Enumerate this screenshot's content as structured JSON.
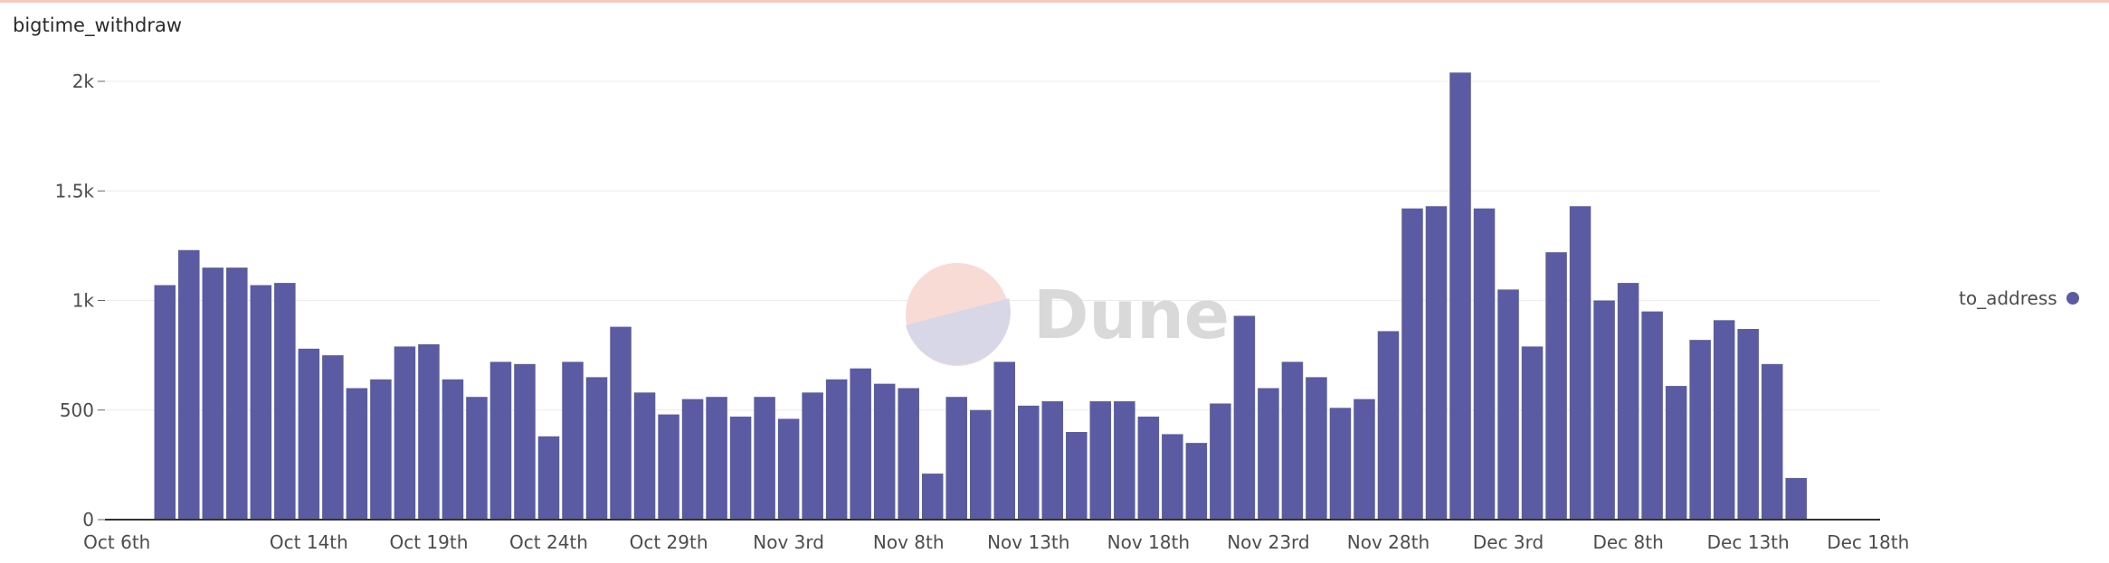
{
  "chart_data": {
    "type": "bar",
    "title": "bigtime_withdraw",
    "xlabel": "",
    "ylabel": "",
    "ylim": [
      0,
      2000
    ],
    "yticks": [
      0,
      500,
      1000,
      1500,
      2000
    ],
    "ytick_labels": [
      "0",
      "500",
      "1k",
      "1.5k",
      "2k"
    ],
    "grid": true,
    "legend_position": "right",
    "color": "#5b5ba3",
    "xtick_labels": [
      "Oct 6th",
      "Oct 14th",
      "Oct 19th",
      "Oct 24th",
      "Oct 29th",
      "Nov 3rd",
      "Nov 8th",
      "Nov 13th",
      "Nov 18th",
      "Nov 23rd",
      "Nov 28th",
      "Dec 3rd",
      "Dec 8th",
      "Dec 13th",
      "Dec 18th"
    ],
    "categories": [
      "Oct 6th",
      "Oct 7th",
      "Oct 8th",
      "Oct 9th",
      "Oct 10th",
      "Oct 11th",
      "Oct 12th",
      "Oct 13th",
      "Oct 14th",
      "Oct 15th",
      "Oct 16th",
      "Oct 17th",
      "Oct 18th",
      "Oct 19th",
      "Oct 20th",
      "Oct 21st",
      "Oct 22nd",
      "Oct 23rd",
      "Oct 24th",
      "Oct 25th",
      "Oct 26th",
      "Oct 27th",
      "Oct 28th",
      "Oct 29th",
      "Oct 30th",
      "Oct 31st",
      "Nov 1st",
      "Nov 2nd",
      "Nov 3rd",
      "Nov 4th",
      "Nov 5th",
      "Nov 6th",
      "Nov 7th",
      "Nov 8th",
      "Nov 9th",
      "Nov 10th",
      "Nov 11th",
      "Nov 12th",
      "Nov 13th",
      "Nov 14th",
      "Nov 15th",
      "Nov 16th",
      "Nov 17th",
      "Nov 18th",
      "Nov 19th",
      "Nov 20th",
      "Nov 21st",
      "Nov 22nd",
      "Nov 23rd",
      "Nov 24th",
      "Nov 25th",
      "Nov 26th",
      "Nov 27th",
      "Nov 28th",
      "Nov 29th",
      "Nov 30th",
      "Dec 1st",
      "Dec 2nd",
      "Dec 3rd",
      "Dec 4th",
      "Dec 5th",
      "Dec 6th",
      "Dec 7th",
      "Dec 8th",
      "Dec 9th",
      "Dec 10th",
      "Dec 11th",
      "Dec 12th",
      "Dec 13th",
      "Dec 14th",
      "Dec 15th",
      "Dec 16th",
      "Dec 17th",
      "Dec 18th"
    ],
    "series": [
      {
        "name": "to_address",
        "values": [
          0,
          0,
          1070,
          1230,
          1150,
          1150,
          1070,
          1080,
          780,
          750,
          600,
          640,
          790,
          800,
          640,
          560,
          720,
          710,
          380,
          720,
          650,
          880,
          580,
          480,
          550,
          560,
          470,
          560,
          460,
          580,
          640,
          690,
          620,
          600,
          210,
          560,
          500,
          720,
          520,
          540,
          400,
          540,
          540,
          470,
          390,
          350,
          530,
          930,
          600,
          720,
          650,
          510,
          550,
          860,
          1420,
          1430,
          2040,
          1420,
          1050,
          790,
          1220,
          1430,
          1000,
          1080,
          950,
          610,
          820,
          910,
          870,
          710,
          190,
          0,
          0,
          0
        ]
      }
    ]
  },
  "watermark": {
    "text": "Dune"
  }
}
